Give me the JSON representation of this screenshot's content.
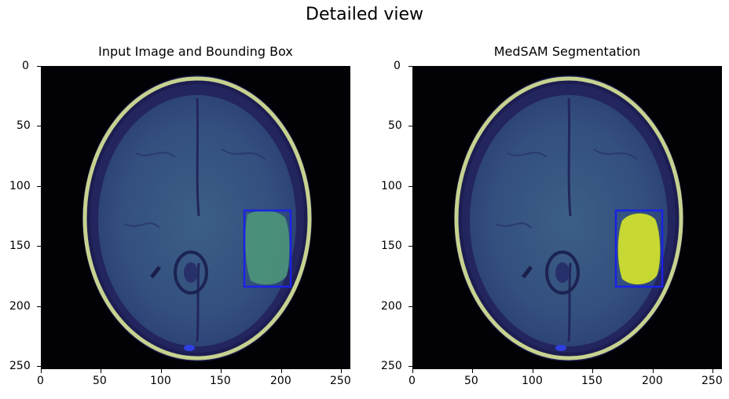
{
  "figure": {
    "suptitle": "Detailed view"
  },
  "panels": [
    {
      "title": "Input Image and Bounding Box",
      "overlay": "bbox",
      "mask_color": "#5cb37a",
      "bbox_color": "#1a22e6"
    },
    {
      "title": "MedSAM Segmentation",
      "overlay": "bbox+mask",
      "mask_color": "#c8d832",
      "bbox_color": "#1a22e6"
    }
  ],
  "axes": {
    "x_ticks": [
      "0",
      "50",
      "100",
      "150",
      "200",
      "250"
    ],
    "y_ticks": [
      "0",
      "50",
      "100",
      "150",
      "200",
      "250"
    ]
  }
}
